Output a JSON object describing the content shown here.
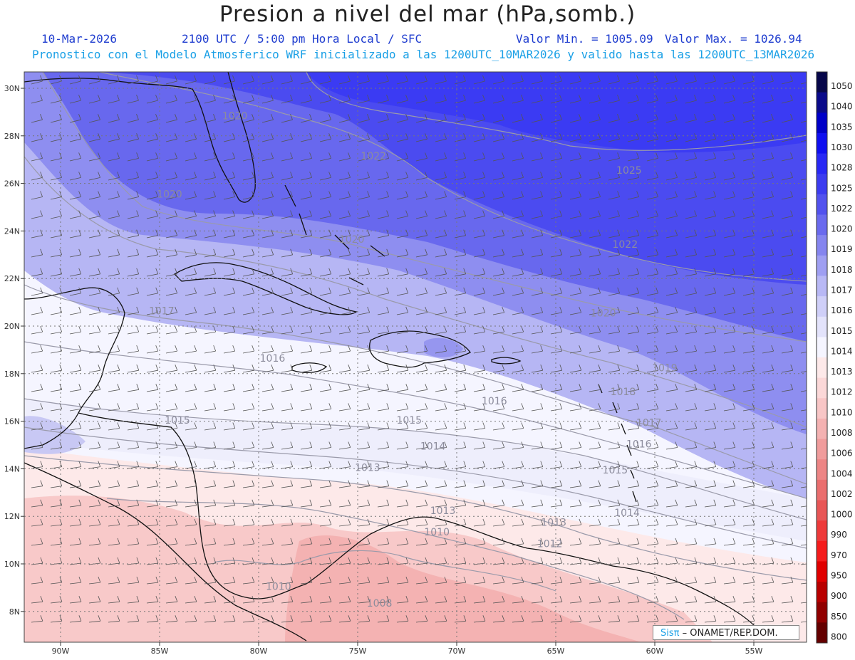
{
  "header": {
    "title": "Presion a nivel del mar (hPa,somb.)",
    "date": "10-Mar-2026",
    "time": "2100 UTC / 5:00 pm Hora Local / SFC",
    "min_label": "Valor Min. = 1005.09",
    "max_label": "Valor Max. = 1026.94",
    "description": "Pronostico con el Modelo Atmosferico WRF inicializado a las 1200UTC_10MAR2026 y valido hasta las  1200UTC_13MAR2026"
  },
  "axes": {
    "lat_ticks": [
      "30N",
      "28N",
      "26N",
      "24N",
      "22N",
      "20N",
      "18N",
      "16N",
      "14N",
      "12N",
      "10N",
      "8N"
    ],
    "lon_ticks": [
      "90W",
      "85W",
      "80W",
      "75W",
      "70W",
      "65W",
      "60W",
      "55W"
    ]
  },
  "colorbar": {
    "levels": [
      "1050",
      "1040",
      "1035",
      "1030",
      "1028",
      "1025",
      "1022",
      "1020",
      "1019",
      "1018",
      "1017",
      "1016",
      "1015",
      "1014",
      "1013",
      "1012",
      "1010",
      "1008",
      "1006",
      "1004",
      "1002",
      "1000",
      "990",
      "970",
      "950",
      "900",
      "850",
      "800"
    ],
    "colors": [
      "#07074a",
      "#0a0a8a",
      "#0000c8",
      "#0f0ff0",
      "#2828f5",
      "#3c3cf0",
      "#5252ee",
      "#6a6aee",
      "#8585ef",
      "#9f9ff2",
      "#b8b8f5",
      "#cfcff8",
      "#e3e3fb",
      "#f5f5ff",
      "#fde9e9",
      "#fbd8d8",
      "#f8c6c6",
      "#f4b2b2",
      "#f09c9c",
      "#ed8585",
      "#ea6e6e",
      "#e85656",
      "#ee3a3a",
      "#f51c1c",
      "#e00000",
      "#b80000",
      "#900000",
      "#640000"
    ]
  },
  "contour_labels": [
    {
      "text": "1020",
      "lon": -81.2,
      "lat": 28.7
    },
    {
      "text": "1022",
      "lon": -74.2,
      "lat": 27.0
    },
    {
      "text": "1025",
      "lon": -61.3,
      "lat": 26.4
    },
    {
      "text": "1020",
      "lon": -84.5,
      "lat": 25.4
    },
    {
      "text": "1020",
      "lon": -75.3,
      "lat": 23.5
    },
    {
      "text": "1022",
      "lon": -61.5,
      "lat": 23.3
    },
    {
      "text": "1017",
      "lon": -84.9,
      "lat": 20.5
    },
    {
      "text": "1020",
      "lon": -62.6,
      "lat": 20.4
    },
    {
      "text": "1016",
      "lon": -79.3,
      "lat": 18.5
    },
    {
      "text": "1019",
      "lon": -59.5,
      "lat": 18.1
    },
    {
      "text": "1016",
      "lon": -68.1,
      "lat": 16.7
    },
    {
      "text": "1018",
      "lon": -61.6,
      "lat": 17.1
    },
    {
      "text": "1015",
      "lon": -84.1,
      "lat": 15.9
    },
    {
      "text": "1015",
      "lon": -72.4,
      "lat": 15.9
    },
    {
      "text": "1017",
      "lon": -60.3,
      "lat": 15.8
    },
    {
      "text": "1014",
      "lon": -71.2,
      "lat": 14.8
    },
    {
      "text": "1016",
      "lon": -60.8,
      "lat": 14.9
    },
    {
      "text": "1013",
      "lon": -74.5,
      "lat": 13.9
    },
    {
      "text": "1015",
      "lon": -62.0,
      "lat": 13.8
    },
    {
      "text": "1013",
      "lon": -70.7,
      "lat": 12.1
    },
    {
      "text": "1014",
      "lon": -61.4,
      "lat": 12.0
    },
    {
      "text": "1013",
      "lon": -65.1,
      "lat": 11.6
    },
    {
      "text": "1010",
      "lon": -71.0,
      "lat": 11.2
    },
    {
      "text": "1012",
      "lon": -65.3,
      "lat": 10.7
    },
    {
      "text": "1010",
      "lon": -79.0,
      "lat": 8.9
    },
    {
      "text": "1008",
      "lon": -73.9,
      "lat": 8.2
    }
  ],
  "credit": {
    "logo_text": "Sisπ",
    "org_text": "– ONAMET/REP.DOM."
  }
}
